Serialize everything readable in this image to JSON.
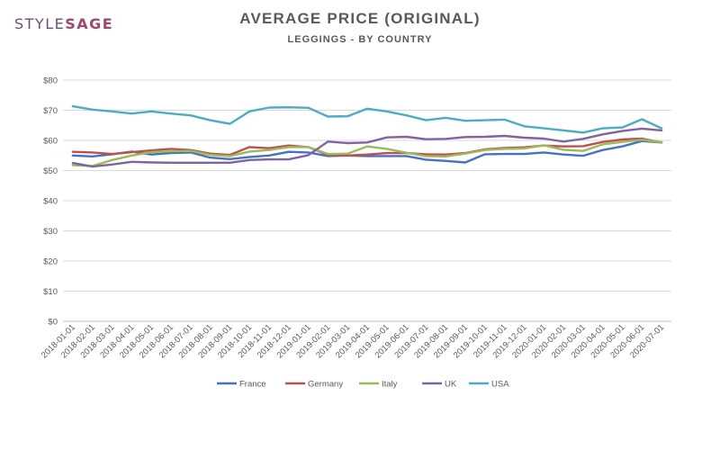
{
  "brand": {
    "style": "STYLE",
    "sage": "SAGE"
  },
  "chart_data": {
    "type": "line",
    "title": "AVERAGE PRICE (ORIGINAL)",
    "subtitle": "LEGGINGS - BY COUNTRY",
    "xlabel": "",
    "ylabel": "",
    "ylim": [
      0,
      80
    ],
    "yticks": [
      "$0",
      "$10",
      "$20",
      "$30",
      "$40",
      "$50",
      "$60",
      "$70",
      "$80"
    ],
    "ytick_values": [
      0,
      10,
      20,
      30,
      40,
      50,
      60,
      70,
      80
    ],
    "grid": true,
    "legend_position": "bottom",
    "categories": [
      "2018-01-01",
      "2018-02-01",
      "2018-03-01",
      "2018-04-01",
      "2018-05-01",
      "2018-06-01",
      "2018-07-01",
      "2018-08-01",
      "2018-09-01",
      "2018-10-01",
      "2018-11-01",
      "2018-12-01",
      "2019-01-01",
      "2019-02-01",
      "2019-03-01",
      "2019-04-01",
      "2019-05-01",
      "2019-06-01",
      "2019-07-01",
      "2019-08-01",
      "2019-09-01",
      "2019-10-01",
      "2019-11-01",
      "2019-12-01",
      "2020-01-01",
      "2020-02-01",
      "2020-03-01",
      "2020-04-01",
      "2020-05-01",
      "2020-06-01",
      "2020-07-01"
    ],
    "series": [
      {
        "name": "France",
        "color": "#4472c4",
        "values": [
          55.0,
          54.7,
          55.4,
          56.3,
          55.3,
          55.8,
          56.0,
          54.3,
          53.8,
          54.5,
          55.0,
          56.2,
          56.0,
          54.8,
          55.0,
          54.8,
          54.8,
          54.8,
          53.6,
          53.2,
          52.7,
          55.4,
          55.5,
          55.5,
          56.0,
          55.3,
          54.9,
          56.8,
          58.0,
          59.8,
          59.3
        ]
      },
      {
        "name": "Germany",
        "color": "#c0504d",
        "values": [
          56.2,
          56.0,
          55.5,
          56.1,
          56.7,
          57.2,
          56.8,
          55.6,
          55.2,
          57.8,
          57.4,
          58.3,
          57.8,
          55.2,
          55.0,
          55.3,
          55.8,
          55.8,
          55.4,
          55.3,
          55.8,
          57.0,
          57.5,
          57.7,
          58.3,
          58.0,
          58.1,
          59.5,
          60.3,
          60.6,
          59.3
        ]
      },
      {
        "name": "Italy",
        "color": "#9bbb59",
        "values": [
          51.8,
          51.5,
          53.5,
          55.0,
          56.1,
          56.4,
          56.5,
          55.2,
          54.8,
          56.3,
          56.8,
          57.8,
          57.8,
          55.5,
          55.6,
          58.0,
          57.2,
          55.9,
          54.8,
          54.7,
          55.6,
          56.8,
          57.2,
          57.3,
          58.4,
          56.9,
          56.5,
          58.7,
          59.5,
          60.2,
          59.4
        ]
      },
      {
        "name": "UK",
        "color": "#8064a2",
        "values": [
          52.5,
          51.3,
          52.0,
          52.9,
          52.7,
          52.6,
          52.6,
          52.6,
          52.6,
          53.5,
          53.7,
          53.7,
          55.1,
          59.6,
          59.1,
          59.3,
          61.0,
          61.2,
          60.4,
          60.5,
          61.1,
          61.2,
          61.5,
          60.9,
          60.6,
          59.6,
          60.5,
          62.0,
          63.1,
          63.9,
          63.3
        ]
      },
      {
        "name": "USA",
        "color": "#4bacc6",
        "values": [
          71.3,
          70.2,
          69.6,
          68.9,
          69.6,
          68.9,
          68.3,
          66.7,
          65.5,
          69.6,
          70.9,
          71.0,
          70.8,
          67.9,
          68.0,
          70.5,
          69.6,
          68.3,
          66.7,
          67.5,
          66.5,
          66.7,
          66.9,
          64.7,
          64.0,
          63.3,
          62.6,
          64.0,
          64.3,
          67.0,
          64.0
        ]
      }
    ]
  }
}
